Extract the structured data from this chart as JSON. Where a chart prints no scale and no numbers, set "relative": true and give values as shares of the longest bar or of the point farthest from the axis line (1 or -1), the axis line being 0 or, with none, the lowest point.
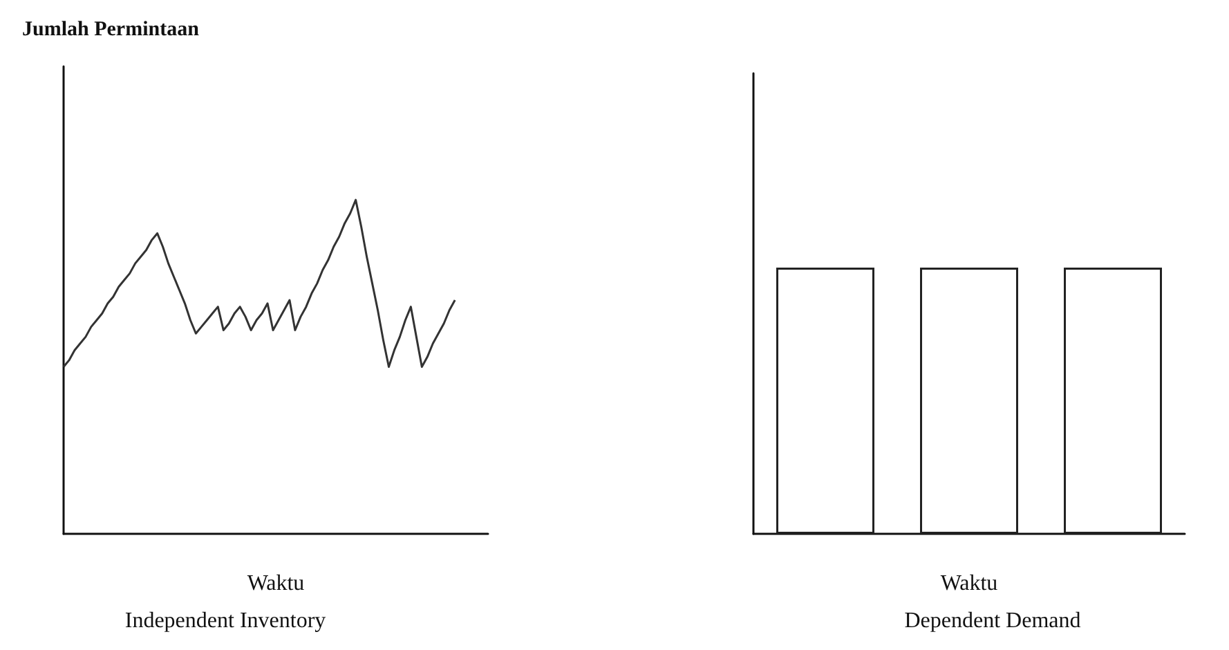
{
  "chart_data": [
    {
      "type": "line",
      "relative": true,
      "ylabel": "Jumlah Permintaan",
      "xlabel": "Waktu",
      "title": "Independent Inventory",
      "color": "#333333",
      "marker": "none",
      "categories": [
        null,
        null,
        null,
        null,
        null,
        null,
        null,
        null,
        null,
        null,
        null,
        null,
        null,
        null,
        null,
        null,
        null,
        null,
        null,
        null,
        null,
        null,
        null,
        null,
        null,
        null,
        null,
        null,
        null,
        null,
        null,
        null,
        null,
        null,
        null,
        null,
        null,
        null,
        null,
        null,
        null,
        null,
        null,
        null,
        null,
        null,
        null,
        null,
        null,
        null,
        null,
        null,
        null,
        null,
        null,
        null,
        null,
        null,
        null,
        null,
        null,
        null,
        null,
        null,
        null,
        null,
        null,
        null,
        null,
        null,
        null,
        null,
        null,
        null,
        null,
        null,
        null,
        null
      ],
      "values": [
        0.5,
        0.52,
        0.55,
        0.57,
        0.59,
        0.62,
        0.64,
        0.66,
        0.69,
        0.71,
        0.74,
        0.76,
        0.78,
        0.81,
        0.83,
        0.85,
        0.88,
        0.9,
        0.86,
        0.81,
        0.77,
        0.73,
        0.69,
        0.64,
        0.6,
        0.62,
        0.64,
        0.66,
        0.68,
        0.61,
        0.63,
        0.66,
        0.68,
        0.65,
        0.61,
        0.64,
        0.66,
        0.69,
        0.61,
        0.64,
        0.67,
        0.7,
        0.61,
        0.65,
        0.68,
        0.72,
        0.75,
        0.79,
        0.82,
        0.86,
        0.89,
        0.93,
        0.96,
        1.0,
        0.92,
        0.83,
        0.75,
        0.67,
        0.58,
        0.5,
        0.55,
        0.59,
        0.64,
        0.68,
        0.59,
        0.5,
        0.53,
        0.57,
        0.6,
        0.63,
        0.67,
        0.7,
        null,
        null,
        null,
        null,
        null,
        null
      ]
    },
    {
      "type": "bar",
      "relative": true,
      "xlabel": "Waktu",
      "title": "Dependent Demand",
      "color": "#ffffff",
      "categories": [
        null,
        null,
        null
      ],
      "values": [
        1,
        1,
        1
      ]
    }
  ]
}
